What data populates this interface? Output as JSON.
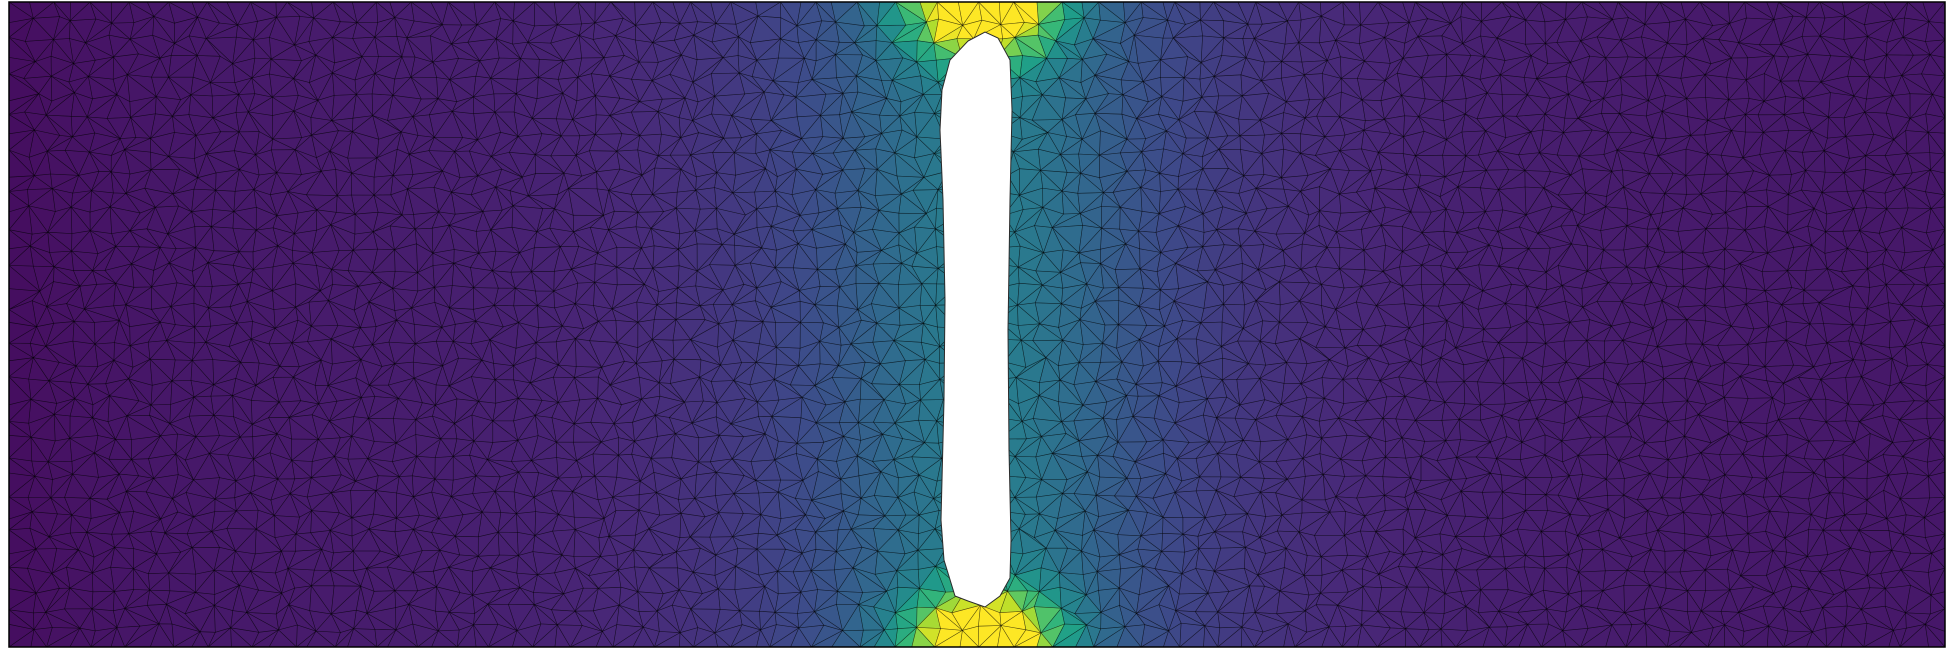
{
  "figure": {
    "type": "fem-mesh-field-plot",
    "colormap": "viridis",
    "colormap_stops": [
      "#440154",
      "#482878",
      "#3e4989",
      "#31688e",
      "#26828e",
      "#1f9e89",
      "#35b779",
      "#6ece58",
      "#b5de2b",
      "#fde725"
    ],
    "background": "#ffffff",
    "mesh_edge_color": "#000000",
    "border_color": "#000000",
    "hole_fill": "#ffffff",
    "concentration_zones": [
      "top-center",
      "bottom-center"
    ]
  }
}
